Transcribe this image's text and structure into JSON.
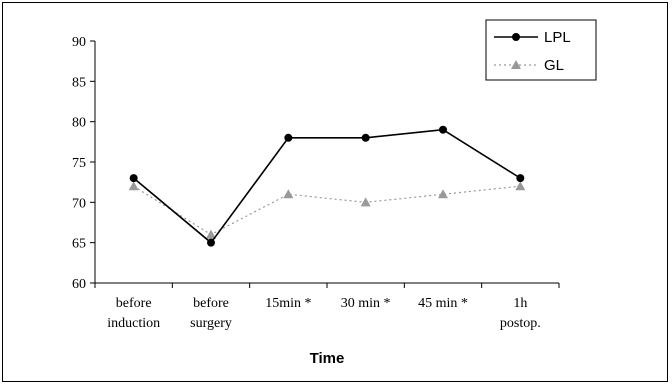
{
  "chart_data": {
    "type": "line",
    "categories": [
      [
        "before",
        "induction"
      ],
      [
        "before",
        "surgery"
      ],
      [
        "15min *"
      ],
      [
        "30 min *"
      ],
      [
        "45 min *"
      ],
      [
        "1h",
        "postop."
      ]
    ],
    "series": [
      {
        "name": "LPL",
        "values": [
          73,
          65,
          78,
          78,
          79,
          73
        ],
        "color": "#000000",
        "marker": "circle",
        "line_style": "solid"
      },
      {
        "name": "GL",
        "values": [
          72,
          66,
          71,
          70,
          71,
          72
        ],
        "color": "#999999",
        "marker": "triangle",
        "line_style": "dotted"
      }
    ],
    "title": "",
    "xlabel": "Time",
    "ylabel": "",
    "ylim": [
      60,
      90
    ],
    "yticks": [
      60,
      65,
      70,
      75,
      80,
      85,
      90
    ],
    "grid": false,
    "legend_position": "top-right"
  }
}
